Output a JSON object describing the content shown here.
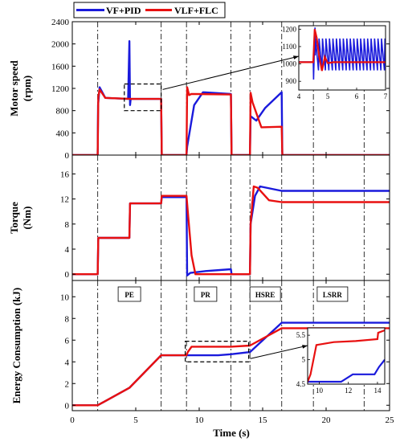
{
  "chart_data": {
    "type": "line",
    "legend": {
      "placement": "top-left",
      "entries": [
        "VF+PID",
        "VLF+FLC"
      ]
    },
    "colors": {
      "VF+PID": "#1a1adc",
      "VLF+FLC": "#e81010"
    },
    "xlabel": "Time (s)",
    "xlim": [
      0,
      25
    ],
    "xticks": [
      "0",
      "5",
      "10",
      "15",
      "20",
      "25"
    ],
    "phase_lines_s": [
      2,
      7,
      9,
      12.5,
      14,
      16.5,
      19,
      23
    ],
    "phase_labels": [
      {
        "label": "PE",
        "x": 4.5
      },
      {
        "label": "PR",
        "x": 10.5
      },
      {
        "label": "HSRE",
        "x": 15.2
      },
      {
        "label": "LSRR",
        "x": 20.5
      }
    ],
    "panels": [
      {
        "ylabel": "Motor speed\n(rpm)",
        "ylim": [
          0,
          2400
        ],
        "yticks": [
          "0",
          "400",
          "800",
          "1200",
          "1600",
          "2000",
          "2400"
        ],
        "series": [
          {
            "name": "VF+PID",
            "x": [
              0,
              2,
              2.03,
              2.15,
              2.6,
              4.4,
              4.5,
              4.55,
              4.6,
              7,
              7.05,
              9,
              9.05,
              9.6,
              10.3,
              12.5,
              12.55,
              14,
              14.05,
              14.5,
              15.2,
              16.5,
              16.55,
              25
            ],
            "y": [
              0,
              0,
              900,
              1220,
              1030,
              1010,
              2050,
              900,
              1010,
              1010,
              0,
              0,
              150,
              900,
              1130,
              1100,
              0,
              0,
              700,
              620,
              850,
              1130,
              0,
              0
            ]
          },
          {
            "name": "VLF+FLC",
            "x": [
              0,
              2,
              2.05,
              2.15,
              2.6,
              4.6,
              4.7,
              7,
              7.05,
              9,
              9.05,
              9.2,
              9.4,
              12.5,
              12.55,
              14,
              14.05,
              14.2,
              14.9,
              16.5,
              16.55,
              25
            ],
            "y": [
              0,
              0,
              1050,
              1180,
              1030,
              1010,
              1010,
              1010,
              0,
              0,
              1220,
              1080,
              1100,
              1090,
              0,
              0,
              1120,
              950,
              500,
              510,
              0,
              0
            ]
          }
        ]
      },
      {
        "ylabel": "Torque\n(Nm)",
        "ylim": [
          -1,
          19
        ],
        "yticks": [
          "0",
          "4",
          "8",
          "12",
          "16"
        ],
        "series": [
          {
            "name": "VF+PID",
            "x": [
              0,
              2,
              2.05,
              4.5,
              4.55,
              7,
              7.05,
              9,
              9.05,
              9.3,
              10.5,
              12.5,
              12.55,
              14,
              14.05,
              14.4,
              14.8,
              16.5,
              16.55,
              25
            ],
            "y": [
              0,
              0,
              5.8,
              5.8,
              11.3,
              11.3,
              12.3,
              12.3,
              -0.2,
              0.2,
              0.5,
              0.8,
              0,
              0,
              8,
              12.5,
              14,
              13.3,
              13.3,
              13.3
            ]
          },
          {
            "name": "VLF+FLC",
            "x": [
              0,
              2,
              2.05,
              4.5,
              4.55,
              7,
              7.05,
              9,
              9.1,
              9.4,
              9.7,
              12.5,
              12.55,
              14,
              14.05,
              14.3,
              14.6,
              15.5,
              16.5,
              16.55,
              25
            ],
            "y": [
              0,
              0,
              5.8,
              5.8,
              11.3,
              11.3,
              12.5,
              12.5,
              10,
              3,
              0,
              0,
              0,
              0,
              8,
              14,
              13.8,
              11.8,
              11.5,
              11.5,
              11.5
            ]
          }
        ]
      },
      {
        "ylabel": "Energy Consumption (kJ)",
        "ylim": [
          -0.5,
          11.5
        ],
        "yticks": [
          "0",
          "2",
          "4",
          "6",
          "8",
          "10"
        ],
        "series": [
          {
            "name": "VF+PID",
            "x": [
              0,
              2,
              4.5,
              7,
              9,
              11.5,
              12.5,
              14,
              16.5,
              25
            ],
            "y": [
              0,
              0,
              1.6,
              4.6,
              4.6,
              4.6,
              4.7,
              4.9,
              7.6,
              7.6
            ]
          },
          {
            "name": "VLF+FLC",
            "x": [
              0,
              2,
              4.5,
              7,
              9,
              9.1,
              9.4,
              12.5,
              14,
              16.5,
              25
            ],
            "y": [
              0,
              0,
              1.6,
              4.6,
              4.6,
              4.9,
              5.4,
              5.4,
              5.5,
              7.1,
              7.1
            ]
          }
        ]
      }
    ],
    "insets": [
      {
        "panel": 0,
        "xlim": [
          4,
          7
        ],
        "ylim": [
          850,
          1220
        ],
        "xticks": [
          "4",
          "5",
          "6",
          "7"
        ],
        "yticks": [
          "900",
          "1000",
          "1100",
          "1200"
        ]
      },
      {
        "panel": 2,
        "xlim": [
          9.2,
          14.5
        ],
        "ylim": [
          4.5,
          5.65
        ],
        "xticks": [
          "10",
          "12",
          "14"
        ],
        "yticks": [
          "4.5",
          "5",
          "5.5"
        ],
        "series": [
          {
            "name": "VF+PID",
            "x": [
              9.2,
              11.5,
              12.3,
              13.8,
              14.1,
              14.5
            ],
            "y": [
              4.55,
              4.55,
              4.7,
              4.7,
              4.85,
              5
            ]
          },
          {
            "name": "VLF+FLC",
            "x": [
              9.2,
              9.4,
              9.8,
              11,
              12.5,
              14,
              14.05,
              14.5
            ],
            "y": [
              4.55,
              4.7,
              5.3,
              5.36,
              5.38,
              5.42,
              5.55,
              5.6
            ]
          }
        ]
      }
    ]
  }
}
